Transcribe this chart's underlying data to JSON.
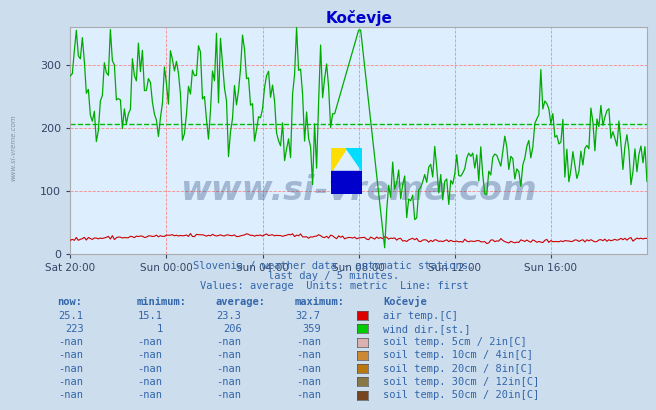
{
  "title": "Kočevje",
  "title_color": "#0000cc",
  "bg_color": "#ccdded",
  "plot_bg_color": "#ddeeff",
  "xmin": 0,
  "xmax": 288,
  "ymin": 0,
  "ymax": 360,
  "yticks": [
    0,
    100,
    200,
    300
  ],
  "xtick_labels": [
    "Sat 20:00",
    "Sun 00:00",
    "Sun 04:00",
    "Sun 08:00",
    "Sun 12:00",
    "Sun 16:00"
  ],
  "xtick_positions": [
    0,
    48,
    96,
    144,
    192,
    240
  ],
  "avg_line_value": 206,
  "avg_line_color": "#00bb00",
  "air_temp_color": "#cc0000",
  "wind_dir_color": "#00aa00",
  "subtitle1": "Slovenia / weather data - automatic stations.",
  "subtitle2": "last day / 5 minutes.",
  "subtitle3": "Values: average  Units: metric  Line: first",
  "station_label": "Kočevje",
  "rows": [
    {
      "now": "25.1",
      "min": "15.1",
      "avg": "23.3",
      "max": "32.7",
      "color": "#dd0000",
      "label": "air temp.[C]"
    },
    {
      "now": "223",
      "min": "1",
      "avg": "206",
      "max": "359",
      "color": "#00cc00",
      "label": "wind dir.[st.]"
    },
    {
      "now": "-nan",
      "min": "-nan",
      "avg": "-nan",
      "max": "-nan",
      "color": "#ddb0b0",
      "label": "soil temp. 5cm / 2in[C]"
    },
    {
      "now": "-nan",
      "min": "-nan",
      "avg": "-nan",
      "max": "-nan",
      "color": "#cc8833",
      "label": "soil temp. 10cm / 4in[C]"
    },
    {
      "now": "-nan",
      "min": "-nan",
      "avg": "-nan",
      "max": "-nan",
      "color": "#bb7711",
      "label": "soil temp. 20cm / 8in[C]"
    },
    {
      "now": "-nan",
      "min": "-nan",
      "avg": "-nan",
      "max": "-nan",
      "color": "#887744",
      "label": "soil temp. 30cm / 12in[C]"
    },
    {
      "now": "-nan",
      "min": "-nan",
      "avg": "-nan",
      "max": "-nan",
      "color": "#774422",
      "label": "soil temp. 50cm / 20in[C]"
    }
  ],
  "watermark_text": "www.si-vreme.com",
  "watermark_color": "#1a3a6a",
  "watermark_alpha": 0.3,
  "left_text": "www.si-vreme.com",
  "logo_yellow": "#ffdd00",
  "logo_cyan": "#00ddff",
  "logo_blue": "#0000cc"
}
